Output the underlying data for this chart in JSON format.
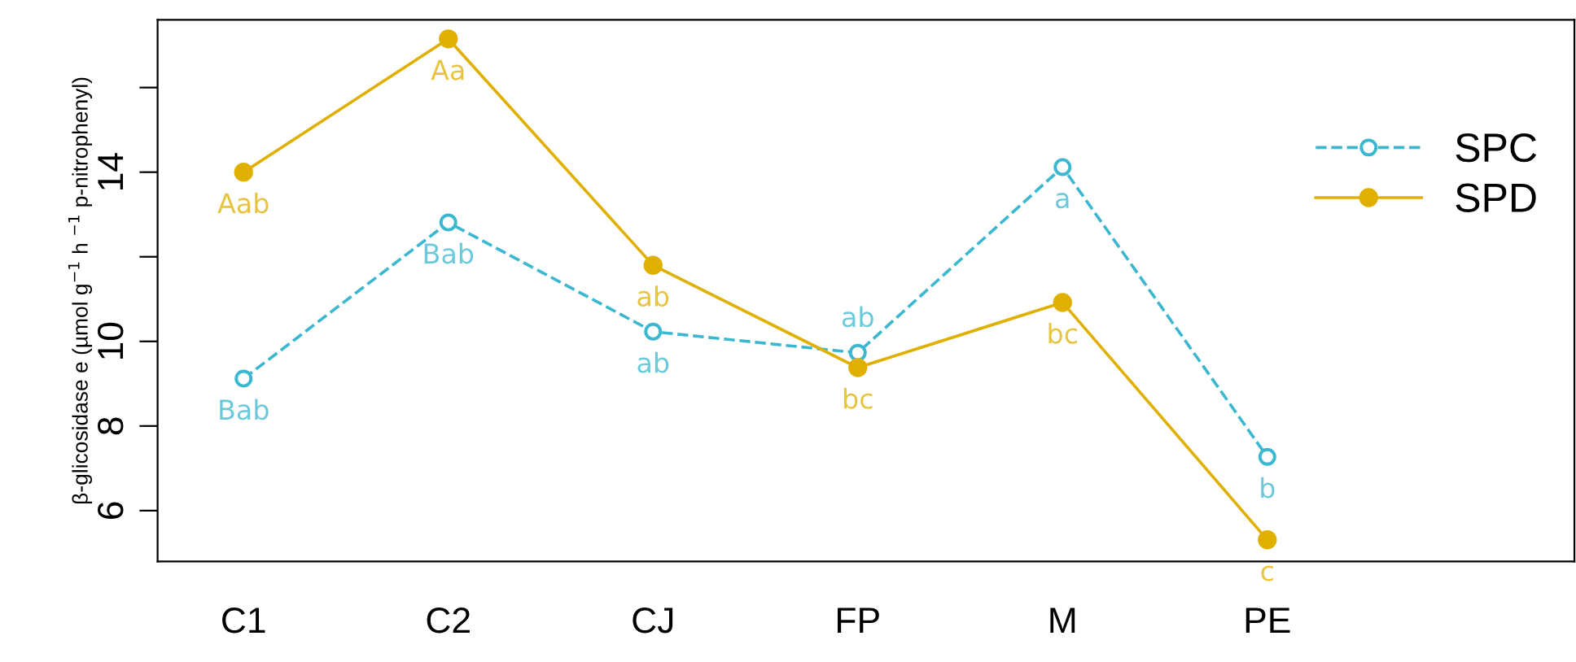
{
  "chart_data": {
    "type": "line",
    "ylabel": "β-glicosidase e (µmol g$^{−1}$ h $^{−1}$ p-nitrophenyl)",
    "categories": [
      "C1",
      "C2",
      "CJ",
      "FP",
      "M",
      "PE"
    ],
    "series": [
      {
        "name": "SPC",
        "color": "#3bb8cf",
        "line_style": "dashed",
        "marker": "circle",
        "values": [
          9.12,
          12.81,
          10.23,
          9.73,
          14.12,
          7.27
        ],
        "value_labels": [
          "Bab",
          "Bab",
          "ab",
          "ab",
          "a",
          "b"
        ]
      },
      {
        "name": "SPD",
        "color": "#e0b000",
        "line_style": "solid",
        "marker": "circle",
        "values": [
          14.0,
          17.15,
          11.8,
          9.38,
          10.92,
          5.31
        ],
        "value_labels": [
          "Aab",
          "Aa",
          "ab",
          "bc",
          "bc",
          "c"
        ]
      }
    ],
    "ylim": [
      4.8,
      17.6
    ],
    "yticks": [
      6,
      8,
      10,
      {
        "value": 12,
        "label": null
      },
      14,
      {
        "value": 16,
        "label": null
      }
    ],
    "grid": false,
    "legend": "top right"
  }
}
